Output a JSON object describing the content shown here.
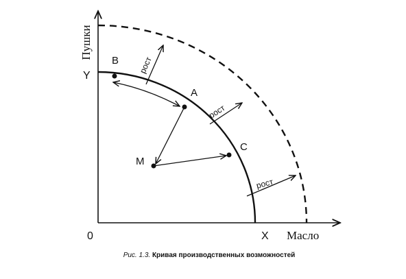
{
  "axes": {
    "y_label": "Пушки",
    "x_label": "Масло",
    "y_end": "Y",
    "x_end": "X",
    "origin": "0"
  },
  "points": {
    "B": "B",
    "A": "A",
    "C": "C",
    "M": "M"
  },
  "growth": [
    "рост",
    "рост",
    "рост"
  ],
  "caption": {
    "number": "Рис. 1.3.",
    "title": "Кривая производственных возможностей"
  }
}
